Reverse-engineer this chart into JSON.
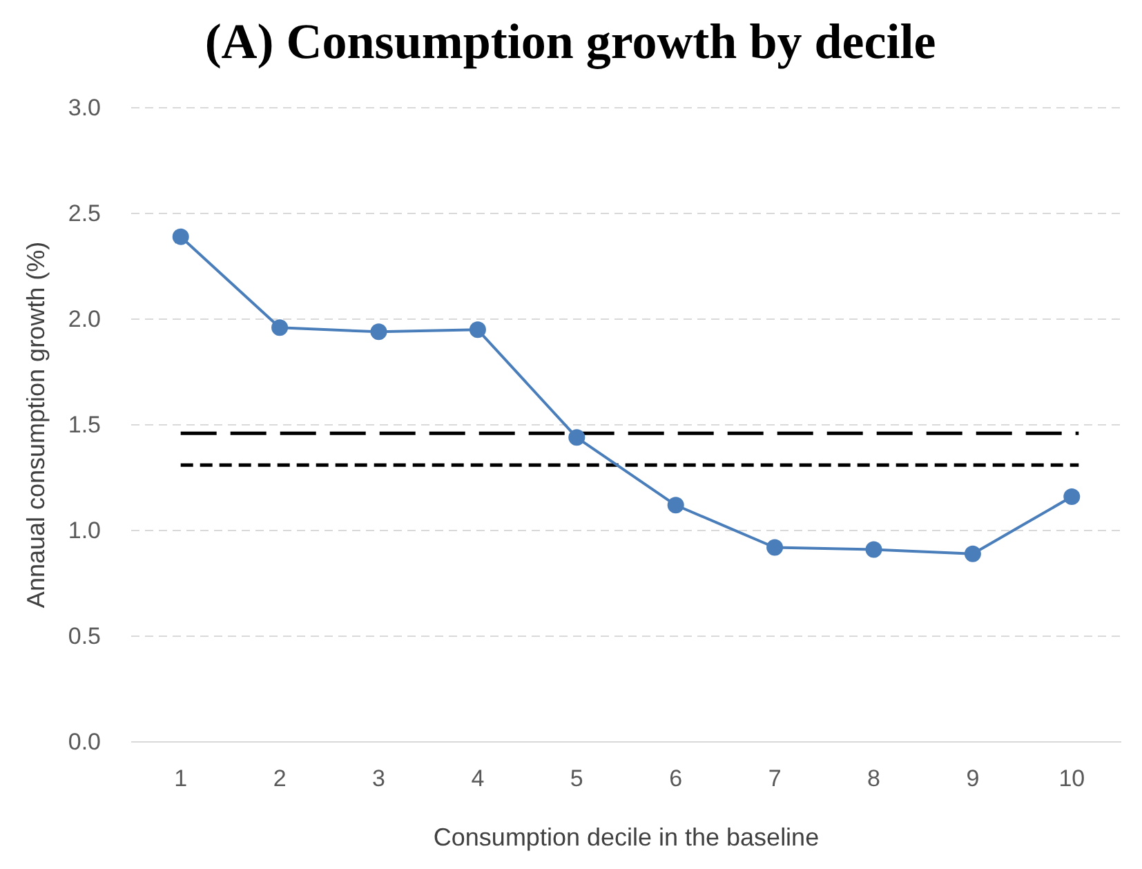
{
  "chart_data": {
    "type": "line",
    "title": "(A) Consumption growth by decile",
    "xlabel": "Consumption decile in the baseline",
    "ylabel": "Annaual consumption growth (%)",
    "categories": [
      "1",
      "2",
      "3",
      "4",
      "5",
      "6",
      "7",
      "8",
      "9",
      "10"
    ],
    "series": [
      {
        "color": "#4a7ebb",
        "values": [
          2.39,
          1.96,
          1.94,
          1.95,
          1.44,
          1.12,
          0.92,
          0.91,
          0.89,
          1.16
        ]
      }
    ],
    "ylim": [
      0,
      3
    ],
    "yticks": [
      {
        "value": 0,
        "label": "0.0"
      },
      {
        "value": 0.5,
        "label": "0.5"
      },
      {
        "value": 1,
        "label": "1.0"
      },
      {
        "value": 1.5,
        "label": "1.5"
      },
      {
        "value": 2,
        "label": "2.0"
      },
      {
        "value": 2.5,
        "label": "2.5"
      },
      {
        "value": 3,
        "label": "3.0"
      }
    ],
    "grid": "y",
    "marker": "circle",
    "line_style": "solid",
    "ref_lines": [
      {
        "axis": "y",
        "value": 1.46,
        "color": "#000000",
        "line_style": "dashed"
      },
      {
        "axis": "y",
        "value": 1.31,
        "color": "#000000",
        "line_style": "dotted"
      }
    ]
  }
}
